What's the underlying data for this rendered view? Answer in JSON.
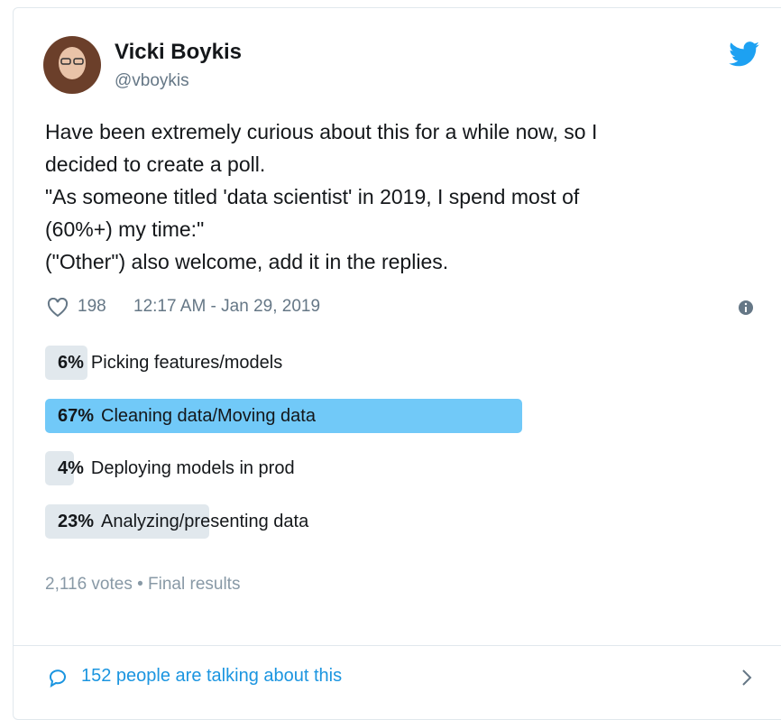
{
  "tweet": {
    "author": {
      "name": "Vicki Boykis",
      "handle": "@vboykis"
    },
    "text_lines": [
      "Have been extremely curious about this for a while now, so I",
      "decided to create a poll.",
      "\"As someone titled 'data scientist' in 2019, I spend most of",
      "(60%+)  my time:\"",
      "(\"Other\") also welcome, add it in the replies."
    ],
    "likes": "198",
    "timestamp": "12:17 AM - Jan 29, 2019",
    "poll": {
      "options": [
        {
          "percent": 6,
          "percent_label": "6%",
          "text": "Picking features/models",
          "color": "#e1e8ed"
        },
        {
          "percent": 67,
          "percent_label": "67%",
          "text": "Cleaning data/Moving data",
          "color": "#71c9f8"
        },
        {
          "percent": 4,
          "percent_label": "4%",
          "text": "Deploying models in prod",
          "color": "#e1e8ed"
        },
        {
          "percent": 23,
          "percent_label": "23%",
          "text": "Analyzing/presenting data",
          "color": "#e1e8ed"
        }
      ],
      "summary": "2,116 votes • Final results"
    },
    "footer": "152 people are talking about this"
  }
}
